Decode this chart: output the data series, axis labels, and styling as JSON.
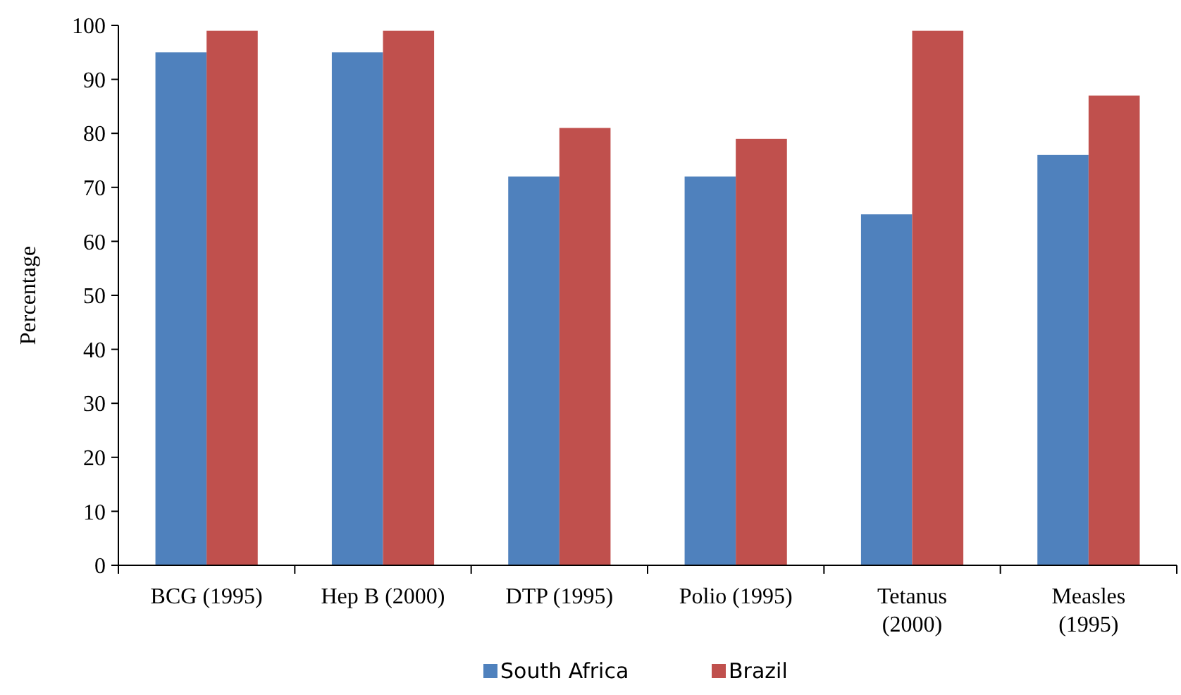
{
  "chart_data": {
    "type": "bar",
    "ylabel": "Percentage",
    "categories": [
      "BCG (1995)",
      "Hep B (2000)",
      "DTP (1995)",
      "Polio (1995)",
      "Tetanus (2000)",
      "Measles (1995)"
    ],
    "series": [
      {
        "name": "South Africa",
        "color": "#4f81bd",
        "values": [
          95,
          95,
          72,
          72,
          65,
          76
        ]
      },
      {
        "name": "Brazil",
        "color": "#c0504d",
        "values": [
          99,
          99,
          81,
          79,
          99,
          87
        ]
      }
    ],
    "ylim": [
      0,
      100
    ],
    "yticks": [
      0,
      10,
      20,
      30,
      40,
      50,
      60,
      70,
      80,
      90,
      100
    ],
    "grid": false,
    "legend": "bottom"
  }
}
